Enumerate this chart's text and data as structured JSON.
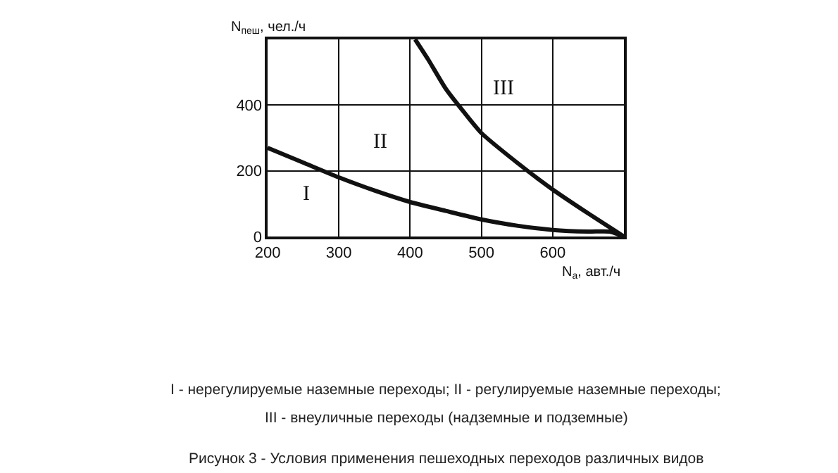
{
  "chart_data": {
    "type": "line",
    "xlabel": "N$_{а}$, авт./ч",
    "ylabel": "N$_{пеш}$, чел./ч",
    "xlim": [
      200,
      700
    ],
    "ylim": [
      0,
      600
    ],
    "xticks": [
      200,
      300,
      400,
      500,
      600
    ],
    "yticks": [
      0,
      200,
      400
    ],
    "grid": true,
    "marker": "none",
    "line_style": "solid",
    "series": [
      {
        "color": "#111111",
        "x": [
          200,
          250,
          300,
          350,
          400,
          450,
          500,
          550,
          600,
          650,
          680,
          700
        ],
        "values": [
          270,
          225,
          180,
          140,
          105,
          78,
          52,
          33,
          20,
          15,
          15,
          0
        ]
      },
      {
        "color": "#111111",
        "x": [
          407,
          425,
          450,
          475,
          500,
          550,
          600,
          650,
          700
        ],
        "values": [
          600,
          540,
          450,
          380,
          315,
          225,
          143,
          70,
          0
        ]
      }
    ],
    "annotations": [
      "I",
      "II",
      "III",
      "I - нерегулируемые наземные переходы; II - регулируемые наземные переходы;",
      "III - внеуличные переходы (надземные и подземные)",
      "Рисунок 3 - Условия применения пешеходных переходов различных видов"
    ]
  }
}
